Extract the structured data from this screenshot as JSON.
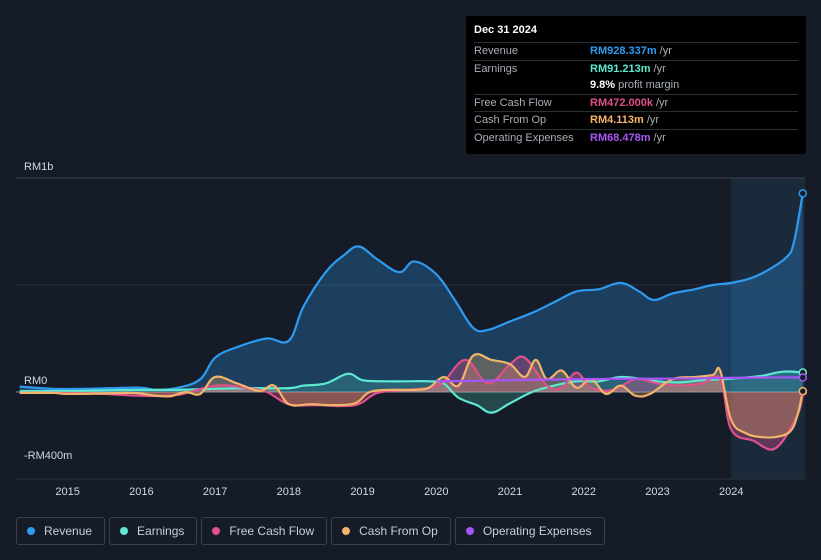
{
  "tooltip": {
    "date": "Dec 31 2024",
    "rows": [
      {
        "label": "Revenue",
        "value": "RM928.337m",
        "unit": "/yr",
        "color": "#2e9bf0"
      },
      {
        "label": "Earnings",
        "value": "RM91.213m",
        "unit": "/yr",
        "color": "#5ee8d0"
      },
      {
        "label": "",
        "value": "9.8%",
        "unit": "profit margin",
        "color": "#ffffff"
      },
      {
        "label": "Free Cash Flow",
        "value": "RM472.000k",
        "unit": "/yr",
        "color": "#e0508a"
      },
      {
        "label": "Cash From Op",
        "value": "RM4.113m",
        "unit": "/yr",
        "color": "#f2b46a"
      },
      {
        "label": "Operating Expenses",
        "value": "RM68.478m",
        "unit": "/yr",
        "color": "#a855f7"
      }
    ]
  },
  "legend": [
    {
      "label": "Revenue",
      "color": "#2e9bf0"
    },
    {
      "label": "Earnings",
      "color": "#5ee8d0"
    },
    {
      "label": "Free Cash Flow",
      "color": "#e0508a"
    },
    {
      "label": "Cash From Op",
      "color": "#f2b46a"
    },
    {
      "label": "Operating Expenses",
      "color": "#a855f7"
    }
  ],
  "chart_data": {
    "type": "line",
    "title": "",
    "xlabel": "",
    "ylabel": "",
    "ylim": [
      -400,
      1000
    ],
    "y_tick_labels": [
      {
        "value": 1000,
        "label": "RM1b"
      },
      {
        "value": 0,
        "label": "RM0"
      },
      {
        "value": -400,
        "label": "-RM400m"
      }
    ],
    "x_ticks": [
      2015,
      2016,
      2017,
      2018,
      2019,
      2020,
      2021,
      2022,
      2023,
      2024
    ],
    "xlim": [
      2014.3,
      2025.0
    ],
    "highlight_start": 2024.0,
    "series": [
      {
        "name": "Revenue",
        "color": "#2e9bf0",
        "fill": true,
        "x": [
          2014.35,
          2014.8,
          2015.2,
          2015.6,
          2016.0,
          2016.2,
          2016.5,
          2016.8,
          2017.0,
          2017.3,
          2017.7,
          2018.0,
          2018.2,
          2018.5,
          2018.75,
          2018.95,
          2019.2,
          2019.5,
          2019.7,
          2020.0,
          2020.25,
          2020.5,
          2020.7,
          2021.0,
          2021.3,
          2021.6,
          2021.9,
          2022.2,
          2022.5,
          2022.75,
          2022.95,
          2023.2,
          2023.5,
          2023.75,
          2024.0,
          2024.25,
          2024.5,
          2024.75,
          2024.85,
          2024.97
        ],
        "values": [
          25,
          15,
          15,
          18,
          20,
          10,
          20,
          60,
          160,
          210,
          250,
          240,
          400,
          560,
          640,
          680,
          620,
          560,
          610,
          550,
          430,
          300,
          290,
          330,
          370,
          420,
          470,
          480,
          510,
          470,
          430,
          460,
          480,
          500,
          510,
          530,
          570,
          630,
          700,
          928
        ]
      },
      {
        "name": "Earnings",
        "color": "#5ee8d0",
        "fill": true,
        "x": [
          2014.35,
          2015.0,
          2015.5,
          2016.0,
          2016.5,
          2017.0,
          2017.5,
          2018.0,
          2018.2,
          2018.5,
          2018.8,
          2019.0,
          2019.3,
          2019.6,
          2019.9,
          2020.1,
          2020.3,
          2020.55,
          2020.75,
          2021.0,
          2021.3,
          2021.6,
          2021.9,
          2022.2,
          2022.5,
          2022.8,
          2023.0,
          2023.3,
          2023.6,
          2023.9,
          2024.1,
          2024.4,
          2024.7,
          2024.97
        ],
        "values": [
          5,
          5,
          8,
          10,
          10,
          15,
          18,
          18,
          30,
          40,
          85,
          55,
          50,
          50,
          50,
          40,
          -30,
          -70,
          -110,
          -60,
          0,
          30,
          50,
          50,
          70,
          60,
          50,
          45,
          55,
          60,
          65,
          75,
          95,
          91
        ]
      },
      {
        "name": "Free Cash Flow",
        "color": "#e0508a",
        "fill": true,
        "x": [
          2014.35,
          2015.0,
          2015.5,
          2016.0,
          2016.5,
          2017.0,
          2017.4,
          2017.7,
          2018.0,
          2018.4,
          2018.9,
          2019.2,
          2019.6,
          2019.9,
          2020.1,
          2020.4,
          2020.7,
          2021.0,
          2021.2,
          2021.5,
          2021.7,
          2021.9,
          2022.1,
          2022.4,
          2022.7,
          2023.0,
          2023.3,
          2023.6,
          2023.85,
          2024.0,
          2024.3,
          2024.6,
          2024.9,
          2024.97
        ],
        "values": [
          -5,
          -5,
          -10,
          -20,
          -15,
          30,
          20,
          0,
          -65,
          -70,
          -70,
          -5,
          10,
          20,
          50,
          150,
          40,
          130,
          160,
          30,
          20,
          90,
          20,
          10,
          60,
          40,
          30,
          40,
          60,
          -200,
          -260,
          -300,
          -120,
          0.5
        ]
      },
      {
        "name": "Cash From Op",
        "color": "#f2b46a",
        "fill": true,
        "x": [
          2014.35,
          2014.8,
          2015.0,
          2015.5,
          2015.9,
          2016.2,
          2016.4,
          2016.6,
          2016.8,
          2017.0,
          2017.3,
          2017.6,
          2017.8,
          2018.0,
          2018.3,
          2018.6,
          2018.9,
          2019.1,
          2019.4,
          2019.7,
          2019.9,
          2020.1,
          2020.3,
          2020.5,
          2020.75,
          2021.0,
          2021.2,
          2021.35,
          2021.5,
          2021.7,
          2021.9,
          2022.1,
          2022.3,
          2022.5,
          2022.7,
          2022.9,
          2023.2,
          2023.5,
          2023.75,
          2023.85,
          2024.0,
          2024.2,
          2024.4,
          2024.6,
          2024.8,
          2024.9,
          2024.97
        ],
        "values": [
          -5,
          -5,
          -10,
          -8,
          -5,
          -20,
          -22,
          0,
          -10,
          70,
          40,
          5,
          30,
          -65,
          -65,
          -70,
          -60,
          0,
          10,
          10,
          20,
          70,
          30,
          170,
          150,
          130,
          70,
          150,
          60,
          100,
          20,
          60,
          -10,
          30,
          -20,
          -10,
          60,
          70,
          80,
          100,
          -150,
          -220,
          -240,
          -240,
          -210,
          -120,
          4
        ]
      },
      {
        "name": "Operating Expenses",
        "color": "#a855f7",
        "fill": false,
        "x": [
          2020.0,
          2020.5,
          2021.0,
          2021.5,
          2022.0,
          2022.5,
          2023.0,
          2023.5,
          2024.0,
          2024.5,
          2024.97
        ],
        "values": [
          50,
          52,
          55,
          58,
          60,
          62,
          62,
          64,
          66,
          68,
          68
        ]
      }
    ]
  }
}
